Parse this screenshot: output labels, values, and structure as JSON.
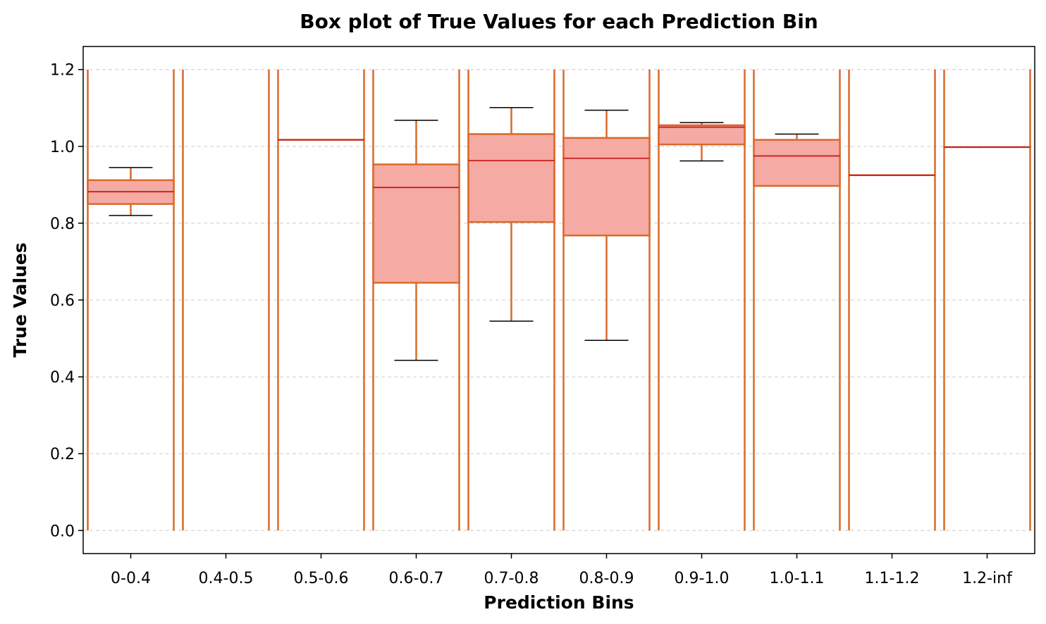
{
  "chart_data": {
    "type": "box",
    "title": "Box plot of True Values for each Prediction Bin",
    "xlabel": "Prediction Bins",
    "ylabel": "True Values",
    "ylim": [
      -0.06,
      1.26
    ],
    "yticks": [
      0.0,
      0.2,
      0.4,
      0.6,
      0.8,
      1.0,
      1.2
    ],
    "ytick_labels": [
      "0.0",
      "0.2",
      "0.4",
      "0.6",
      "0.8",
      "1.0",
      "1.2"
    ],
    "grid": "y-dashed",
    "categories": [
      "0-0.4",
      "0.4-0.5",
      "0.5-0.6",
      "0.6-0.7",
      "0.7-0.8",
      "0.8-0.9",
      "0.9-1.0",
      "1.0-1.1",
      "1.1-1.2",
      "1.2-inf"
    ],
    "boxes": [
      {
        "whisker_low": 0.82,
        "q1": 0.85,
        "median": 0.882,
        "q3": 0.912,
        "whisker_high": 0.945
      },
      null,
      {
        "whisker_low": 1.017,
        "q1": 1.017,
        "median": 1.017,
        "q3": 1.017,
        "whisker_high": 1.017
      },
      {
        "whisker_low": 0.443,
        "q1": 0.645,
        "median": 0.893,
        "q3": 0.953,
        "whisker_high": 1.068
      },
      {
        "whisker_low": 0.545,
        "q1": 0.803,
        "median": 0.963,
        "q3": 1.032,
        "whisker_high": 1.101
      },
      {
        "whisker_low": 0.495,
        "q1": 0.768,
        "median": 0.969,
        "q3": 1.022,
        "whisker_high": 1.094
      },
      {
        "whisker_low": 0.962,
        "q1": 1.005,
        "median": 1.05,
        "q3": 1.055,
        "whisker_high": 1.062
      },
      {
        "whisker_low": 0.897,
        "q1": 0.897,
        "median": 0.975,
        "q3": 1.017,
        "whisker_high": 1.032
      },
      {
        "whisker_low": 0.925,
        "q1": 0.925,
        "median": 0.925,
        "q3": 0.925,
        "whisker_high": 0.925
      },
      {
        "whisker_low": 0.998,
        "q1": 0.998,
        "median": 0.998,
        "q3": 0.998,
        "whisker_high": 0.998
      }
    ],
    "bin_edge_lines": {
      "y_from": 0.0,
      "y_to": 1.2
    },
    "colors": {
      "box_fill": "#f5aaa3",
      "box_edge": "#d96a2b",
      "median": "#c81e1e",
      "whisker": "#d96a2b",
      "cap": "#000000",
      "edge_line": "#d96a2b",
      "grid": "#cccccc"
    }
  }
}
